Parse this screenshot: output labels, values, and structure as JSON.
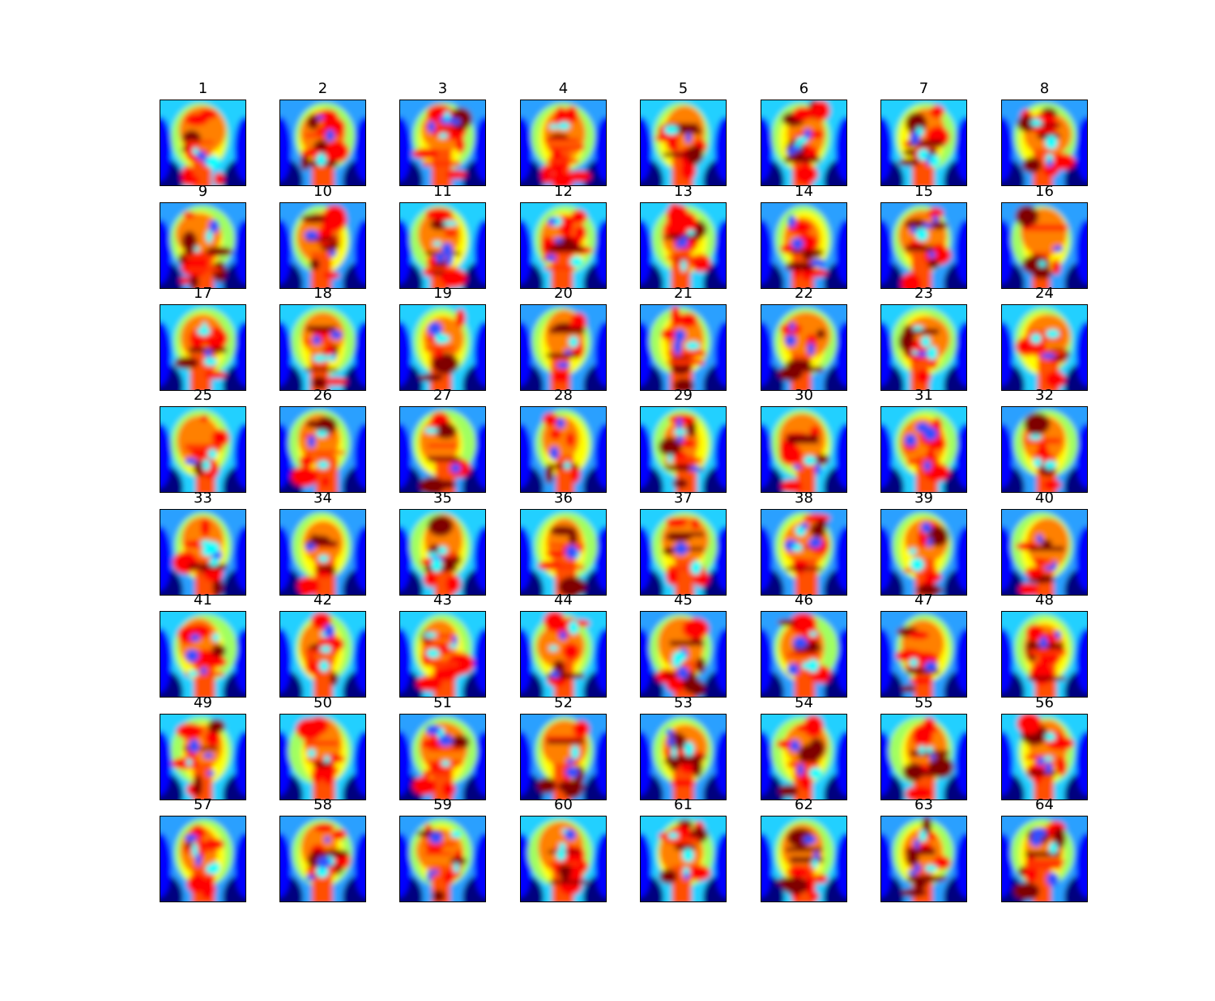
{
  "figure": {
    "colormap": "jet",
    "colors": {
      "jet_low": "#00007f",
      "jet_blue": "#0000ff",
      "jet_cyan": "#00ffff",
      "jet_yellow": "#ffff00",
      "jet_red": "#ff0000",
      "jet_high": "#7f0000"
    },
    "panels": [
      {
        "title": "1"
      },
      {
        "title": "2"
      },
      {
        "title": "3"
      },
      {
        "title": "4"
      },
      {
        "title": "5"
      },
      {
        "title": "6"
      },
      {
        "title": "7"
      },
      {
        "title": "8"
      },
      {
        "title": "9"
      },
      {
        "title": "10"
      },
      {
        "title": "11"
      },
      {
        "title": "12"
      },
      {
        "title": "13"
      },
      {
        "title": "14"
      },
      {
        "title": "15"
      },
      {
        "title": "16"
      },
      {
        "title": "17"
      },
      {
        "title": "18"
      },
      {
        "title": "19"
      },
      {
        "title": "20"
      },
      {
        "title": "21"
      },
      {
        "title": "22"
      },
      {
        "title": "23"
      },
      {
        "title": "24"
      },
      {
        "title": "25"
      },
      {
        "title": "26"
      },
      {
        "title": "27"
      },
      {
        "title": "28"
      },
      {
        "title": "29"
      },
      {
        "title": "30"
      },
      {
        "title": "31"
      },
      {
        "title": "32"
      },
      {
        "title": "33"
      },
      {
        "title": "34"
      },
      {
        "title": "35"
      },
      {
        "title": "36"
      },
      {
        "title": "37"
      },
      {
        "title": "38"
      },
      {
        "title": "39"
      },
      {
        "title": "40"
      },
      {
        "title": "41"
      },
      {
        "title": "42"
      },
      {
        "title": "43"
      },
      {
        "title": "44"
      },
      {
        "title": "45"
      },
      {
        "title": "46"
      },
      {
        "title": "47"
      },
      {
        "title": "48"
      },
      {
        "title": "49"
      },
      {
        "title": "50"
      },
      {
        "title": "51"
      },
      {
        "title": "52"
      },
      {
        "title": "53"
      },
      {
        "title": "54"
      },
      {
        "title": "55"
      },
      {
        "title": "56"
      },
      {
        "title": "57"
      },
      {
        "title": "58"
      },
      {
        "title": "59"
      },
      {
        "title": "60"
      },
      {
        "title": "61"
      },
      {
        "title": "62"
      },
      {
        "title": "63"
      },
      {
        "title": "64"
      }
    ]
  }
}
